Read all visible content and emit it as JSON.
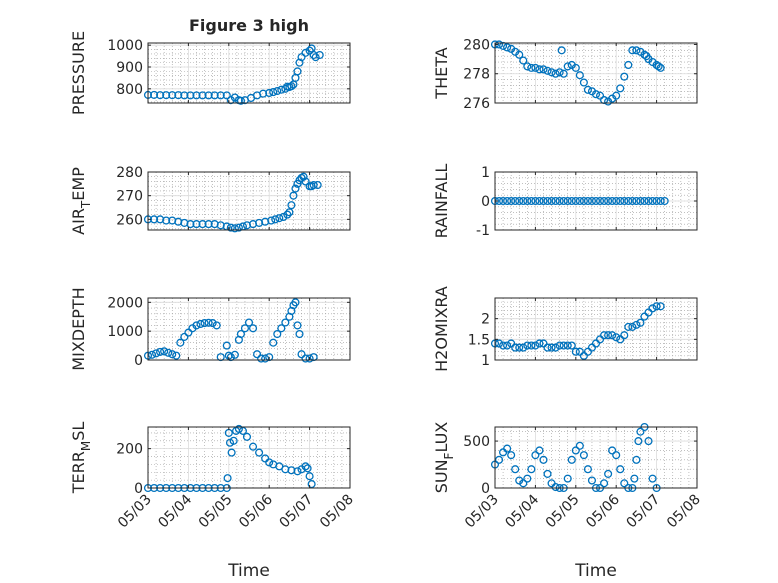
{
  "figure_title": "Figure 3 high",
  "colors": {
    "series": "#0072BD",
    "axes": "#262626",
    "grid": "#dcdcdc"
  },
  "chart_data": [
    {
      "type": "scatter",
      "title": "Figure 3 high",
      "ylabel": "PRESSURE",
      "ylabel_sub": "",
      "xlabel": "",
      "ylim": [
        735,
        1010
      ],
      "yticks": [
        800,
        900,
        1000
      ],
      "yticklabels": [
        "800",
        "900",
        "1000"
      ],
      "xlim": [
        0,
        5
      ],
      "xticks": [
        0,
        1,
        2,
        3,
        4,
        5
      ],
      "xticklabels": [
        "05/03",
        "05/04",
        "05/05",
        "05/06",
        "05/07",
        "05/08"
      ],
      "show_xticklabels": false,
      "grid": true,
      "minor_grid": true,
      "x": [
        0.0,
        0.15,
        0.3,
        0.45,
        0.6,
        0.75,
        0.9,
        1.05,
        1.2,
        1.35,
        1.5,
        1.65,
        1.8,
        1.95,
        2.05,
        2.15,
        2.25,
        2.3,
        2.4,
        2.55,
        2.7,
        2.85,
        3.0,
        3.1,
        3.2,
        3.3,
        3.4,
        3.45,
        3.5,
        3.55,
        3.6,
        3.65,
        3.7,
        3.75,
        3.8,
        3.9,
        4.0,
        4.05,
        4.1,
        4.15,
        4.25
      ],
      "y": [
        772,
        772,
        771,
        771,
        771,
        771,
        770,
        770,
        770,
        770,
        770,
        770,
        770,
        770,
        748,
        760,
        748,
        745,
        748,
        758,
        770,
        778,
        781,
        785,
        790,
        796,
        800,
        810,
        808,
        812,
        820,
        850,
        880,
        920,
        945,
        965,
        975,
        985,
        955,
        945,
        955
      ]
    },
    {
      "type": "scatter",
      "title": "",
      "ylabel": "THETA",
      "ylabel_sub": "",
      "xlabel": "",
      "ylim": [
        276,
        280.1
      ],
      "yticks": [
        276,
        278,
        280
      ],
      "yticklabels": [
        "276",
        "278",
        "280"
      ],
      "xlim": [
        0,
        5
      ],
      "xticks": [
        0,
        1,
        2,
        3,
        4,
        5
      ],
      "xticklabels": [
        "05/03",
        "05/04",
        "05/05",
        "05/06",
        "05/07",
        "05/08"
      ],
      "show_xticklabels": false,
      "grid": true,
      "minor_grid": true,
      "x": [
        0.0,
        0.1,
        0.2,
        0.3,
        0.4,
        0.5,
        0.6,
        0.7,
        0.8,
        0.9,
        1.0,
        1.1,
        1.2,
        1.3,
        1.4,
        1.5,
        1.6,
        1.65,
        1.7,
        1.8,
        1.9,
        2.0,
        2.1,
        2.2,
        2.3,
        2.4,
        2.5,
        2.6,
        2.7,
        2.8,
        2.9,
        3.0,
        3.1,
        3.2,
        3.3,
        3.4,
        3.5,
        3.6,
        3.7,
        3.75,
        3.8,
        3.9,
        4.0,
        4.05,
        4.1
      ],
      "y": [
        280,
        280,
        279.9,
        279.8,
        279.7,
        279.5,
        279.3,
        278.9,
        278.5,
        278.4,
        278.4,
        278.3,
        278.3,
        278.2,
        278.1,
        278.0,
        278.1,
        279.6,
        278.0,
        278.5,
        278.6,
        278.4,
        277.9,
        277.4,
        276.9,
        276.8,
        276.6,
        276.5,
        276.2,
        276.1,
        276.3,
        276.5,
        277.0,
        277.8,
        278.6,
        279.6,
        279.6,
        279.5,
        279.3,
        279.2,
        279.0,
        278.8,
        278.6,
        278.5,
        278.4
      ]
    },
    {
      "type": "scatter",
      "title": "",
      "ylabel": "AIR",
      "ylabel_sub": "T",
      "ylabel_tail": "EMP",
      "xlabel": "",
      "ylim": [
        255.5,
        280
      ],
      "yticks": [
        260,
        270,
        280
      ],
      "yticklabels": [
        "260",
        "270",
        "280"
      ],
      "xlim": [
        0,
        5
      ],
      "xticks": [
        0,
        1,
        2,
        3,
        4,
        5
      ],
      "xticklabels": [
        "05/03",
        "05/04",
        "05/05",
        "05/06",
        "05/07",
        "05/08"
      ],
      "show_xticklabels": false,
      "grid": true,
      "minor_grid": true,
      "x": [
        0.0,
        0.15,
        0.3,
        0.45,
        0.6,
        0.75,
        0.9,
        1.05,
        1.2,
        1.35,
        1.5,
        1.65,
        1.8,
        1.95,
        2.05,
        2.15,
        2.25,
        2.35,
        2.45,
        2.6,
        2.75,
        2.9,
        3.05,
        3.15,
        3.25,
        3.35,
        3.45,
        3.5,
        3.55,
        3.6,
        3.65,
        3.7,
        3.75,
        3.8,
        3.85,
        3.9,
        4.0,
        4.05,
        4.1,
        4.2
      ],
      "y": [
        260,
        260,
        260,
        259.5,
        259.5,
        259,
        258.5,
        258,
        258,
        258,
        258,
        258,
        257.5,
        257,
        256.5,
        256.2,
        256.5,
        257,
        257.5,
        258,
        258.5,
        259,
        259.5,
        260,
        260.5,
        261,
        262,
        263,
        266,
        270,
        273,
        275,
        276.5,
        277.5,
        278,
        276,
        274,
        274,
        274.5,
        274.5
      ]
    },
    {
      "type": "scatter",
      "title": "",
      "ylabel": "RAINFALL",
      "ylabel_sub": "",
      "xlabel": "",
      "ylim": [
        -1,
        1
      ],
      "yticks": [
        -1,
        0,
        1
      ],
      "yticklabels": [
        "-1",
        "0",
        "1"
      ],
      "xlim": [
        0,
        5
      ],
      "xticks": [
        0,
        1,
        2,
        3,
        4,
        5
      ],
      "xticklabels": [
        "05/03",
        "05/04",
        "05/05",
        "05/06",
        "05/07",
        "05/08"
      ],
      "show_xticklabels": false,
      "grid": true,
      "minor_grid": true,
      "x": [
        0.0,
        0.1,
        0.2,
        0.3,
        0.4,
        0.5,
        0.6,
        0.7,
        0.8,
        0.9,
        1.0,
        1.1,
        1.2,
        1.3,
        1.4,
        1.5,
        1.6,
        1.7,
        1.8,
        1.9,
        2.0,
        2.1,
        2.2,
        2.3,
        2.4,
        2.5,
        2.6,
        2.7,
        2.8,
        2.9,
        3.0,
        3.1,
        3.2,
        3.3,
        3.4,
        3.5,
        3.6,
        3.7,
        3.8,
        3.9,
        4.0,
        4.1,
        4.2
      ],
      "y": [
        0,
        0,
        0,
        0,
        0,
        0,
        0,
        0,
        0,
        0,
        0,
        0,
        0,
        0,
        0,
        0,
        0,
        0,
        0,
        0,
        0,
        0,
        0,
        0,
        0,
        0,
        0,
        0,
        0,
        0,
        0,
        0,
        0,
        0,
        0,
        0,
        0,
        0,
        0,
        0,
        0,
        0,
        0
      ]
    },
    {
      "type": "scatter",
      "title": "",
      "ylabel": "MIXDEPTH",
      "ylabel_sub": "",
      "xlabel": "",
      "ylim": [
        0,
        2150
      ],
      "yticks": [
        0,
        1000,
        2000
      ],
      "yticklabels": [
        "0",
        "1000",
        "2000"
      ],
      "xlim": [
        0,
        5
      ],
      "xticks": [
        0,
        1,
        2,
        3,
        4,
        5
      ],
      "xticklabels": [
        "05/03",
        "05/04",
        "05/05",
        "05/06",
        "05/07",
        "05/08"
      ],
      "show_xticklabels": false,
      "grid": true,
      "minor_grid": true,
      "x": [
        0.0,
        0.1,
        0.2,
        0.3,
        0.4,
        0.5,
        0.6,
        0.7,
        0.8,
        0.9,
        1.0,
        1.1,
        1.2,
        1.3,
        1.4,
        1.5,
        1.6,
        1.7,
        1.8,
        1.95,
        2.0,
        2.05,
        2.15,
        2.25,
        2.3,
        2.4,
        2.5,
        2.6,
        2.7,
        2.8,
        2.9,
        3.0,
        3.1,
        3.2,
        3.3,
        3.4,
        3.5,
        3.55,
        3.6,
        3.65,
        3.7,
        3.75,
        3.8,
        3.9,
        4.0,
        4.1
      ],
      "y": [
        150,
        180,
        230,
        280,
        300,
        250,
        200,
        150,
        600,
        800,
        950,
        1100,
        1200,
        1250,
        1280,
        1290,
        1280,
        1200,
        100,
        500,
        150,
        100,
        180,
        700,
        900,
        1100,
        1300,
        1100,
        200,
        50,
        50,
        100,
        600,
        900,
        1100,
        1300,
        1500,
        1700,
        1900,
        2000,
        1200,
        900,
        200,
        50,
        50,
        100
      ]
    },
    {
      "type": "scatter",
      "title": "",
      "ylabel": "H2OMIXRA",
      "ylabel_sub": "",
      "xlabel": "",
      "ylim": [
        1,
        2.5
      ],
      "yticks": [
        1,
        1.5,
        2
      ],
      "yticklabels": [
        "1",
        "1.5",
        "2"
      ],
      "xlim": [
        0,
        5
      ],
      "xticks": [
        0,
        1,
        2,
        3,
        4,
        5
      ],
      "xticklabels": [
        "05/03",
        "05/04",
        "05/05",
        "05/06",
        "05/07",
        "05/08"
      ],
      "show_xticklabels": false,
      "grid": true,
      "minor_grid": true,
      "x": [
        0.0,
        0.1,
        0.2,
        0.3,
        0.4,
        0.5,
        0.6,
        0.7,
        0.8,
        0.9,
        1.0,
        1.1,
        1.2,
        1.3,
        1.4,
        1.5,
        1.6,
        1.7,
        1.8,
        1.9,
        2.0,
        2.1,
        2.2,
        2.3,
        2.4,
        2.5,
        2.6,
        2.7,
        2.8,
        2.9,
        3.0,
        3.1,
        3.2,
        3.3,
        3.4,
        3.5,
        3.6,
        3.7,
        3.8,
        3.9,
        4.0,
        4.1
      ],
      "y": [
        1.4,
        1.4,
        1.35,
        1.35,
        1.4,
        1.3,
        1.3,
        1.3,
        1.35,
        1.35,
        1.35,
        1.4,
        1.4,
        1.3,
        1.3,
        1.3,
        1.35,
        1.35,
        1.35,
        1.35,
        1.2,
        1.2,
        1.1,
        1.2,
        1.3,
        1.4,
        1.5,
        1.6,
        1.6,
        1.6,
        1.55,
        1.5,
        1.6,
        1.8,
        1.8,
        1.85,
        1.9,
        2.05,
        2.15,
        2.25,
        2.3,
        2.3
      ]
    },
    {
      "type": "scatter",
      "title": "",
      "ylabel": "TERR",
      "ylabel_sub": "M",
      "ylabel_tail": "SL",
      "xlabel": "Time",
      "ylim": [
        0,
        310
      ],
      "yticks": [
        0,
        200
      ],
      "yticklabels": [
        "0",
        "200"
      ],
      "xlim": [
        0,
        5
      ],
      "xticks": [
        0,
        1,
        2,
        3,
        4,
        5
      ],
      "xticklabels": [
        "05/03",
        "05/04",
        "05/05",
        "05/06",
        "05/07",
        "05/08"
      ],
      "show_xticklabels": true,
      "grid": true,
      "minor_grid": true,
      "x": [
        0.0,
        0.15,
        0.3,
        0.45,
        0.6,
        0.75,
        0.9,
        1.05,
        1.2,
        1.35,
        1.5,
        1.65,
        1.8,
        1.95,
        1.97,
        2.0,
        2.03,
        2.07,
        2.12,
        2.18,
        2.25,
        2.35,
        2.45,
        2.6,
        2.75,
        2.9,
        3.0,
        3.1,
        3.25,
        3.4,
        3.55,
        3.7,
        3.8,
        3.9,
        3.95,
        4.0,
        4.05
      ],
      "y": [
        0,
        0,
        0,
        0,
        0,
        0,
        0,
        0,
        0,
        0,
        0,
        0,
        0,
        0,
        50,
        280,
        230,
        180,
        240,
        290,
        300,
        290,
        260,
        210,
        180,
        150,
        130,
        120,
        110,
        95,
        90,
        85,
        95,
        110,
        100,
        60,
        20
      ]
    },
    {
      "type": "scatter",
      "title": "",
      "ylabel": "SUN",
      "ylabel_sub": "F",
      "ylabel_tail": "LUX",
      "xlabel": "Time",
      "ylim": [
        0,
        650
      ],
      "yticks": [
        0,
        500
      ],
      "yticklabels": [
        "0",
        "500"
      ],
      "xlim": [
        0,
        5
      ],
      "xticks": [
        0,
        1,
        2,
        3,
        4,
        5
      ],
      "xticklabels": [
        "05/03",
        "05/04",
        "05/05",
        "05/06",
        "05/07",
        "05/08"
      ],
      "show_xticklabels": true,
      "grid": true,
      "minor_grid": true,
      "x": [
        0.0,
        0.1,
        0.2,
        0.3,
        0.4,
        0.5,
        0.6,
        0.7,
        0.8,
        0.9,
        1.0,
        1.1,
        1.2,
        1.3,
        1.4,
        1.5,
        1.6,
        1.7,
        1.8,
        1.9,
        2.0,
        2.1,
        2.2,
        2.3,
        2.4,
        2.5,
        2.6,
        2.7,
        2.8,
        2.9,
        3.0,
        3.1,
        3.2,
        3.3,
        3.4,
        3.45,
        3.5,
        3.55,
        3.6,
        3.7,
        3.8,
        3.9,
        4.0
      ],
      "y": [
        250,
        300,
        380,
        420,
        350,
        200,
        80,
        50,
        100,
        200,
        350,
        400,
        300,
        150,
        50,
        10,
        0,
        0,
        100,
        300,
        400,
        450,
        350,
        200,
        80,
        0,
        0,
        50,
        150,
        400,
        350,
        200,
        50,
        0,
        0,
        100,
        300,
        500,
        600,
        650,
        500,
        100,
        0
      ]
    }
  ]
}
